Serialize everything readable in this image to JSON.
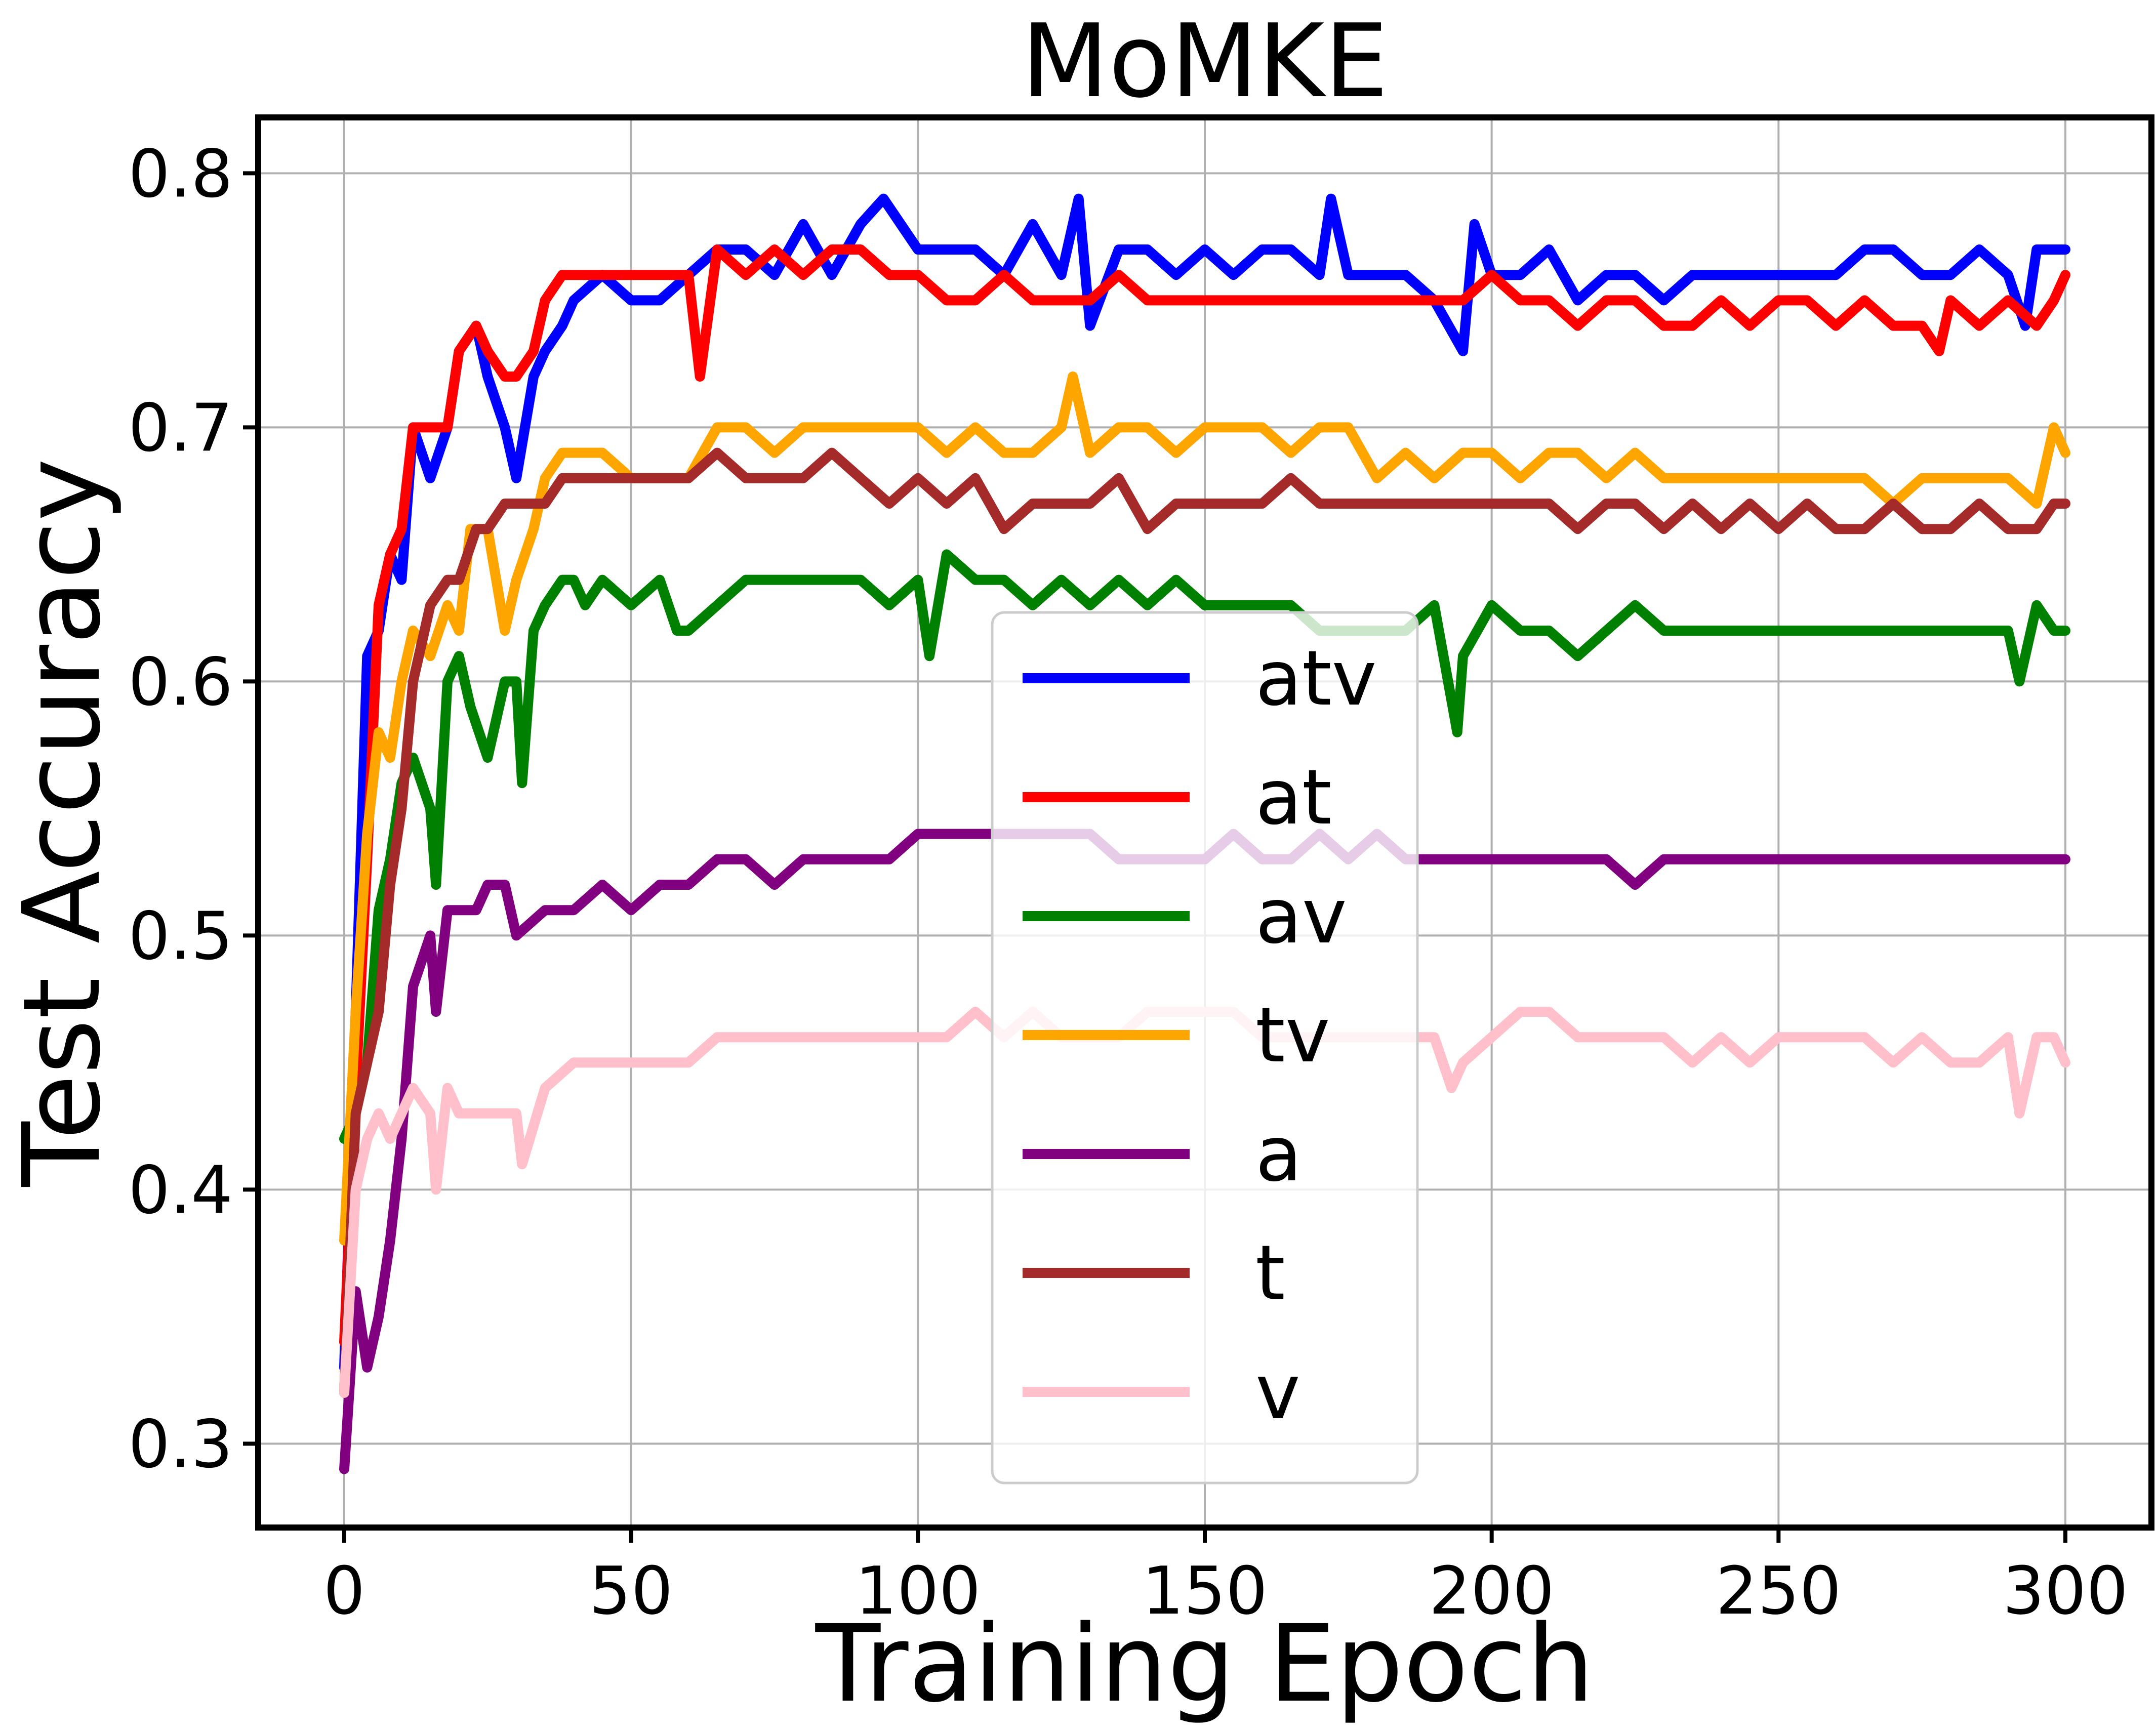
{
  "chart_data": {
    "type": "line",
    "title": "MoMKE",
    "xlabel": "Training Epoch",
    "ylabel": "Test Accuracy",
    "xlim": [
      -15,
      315
    ],
    "ylim": [
      0.267,
      0.822
    ],
    "xticks": [
      0,
      50,
      100,
      150,
      200,
      250,
      300
    ],
    "yticks": [
      0.3,
      0.4,
      0.5,
      0.6,
      0.7,
      0.8
    ],
    "xtick_labels": [
      "0",
      "50",
      "100",
      "150",
      "200",
      "250",
      "300"
    ],
    "ytick_labels": [
      "0.3",
      "0.4",
      "0.5",
      "0.6",
      "0.7",
      "0.8"
    ],
    "grid": true,
    "legend_position": "center",
    "series": [
      {
        "name": "atv",
        "color": "#0000ff",
        "x": [
          0,
          2,
          4,
          6,
          8,
          10,
          12,
          15,
          18,
          20,
          23,
          25,
          28,
          30,
          33,
          35,
          38,
          40,
          45,
          50,
          55,
          60,
          65,
          70,
          75,
          80,
          85,
          90,
          94,
          100,
          105,
          110,
          115,
          120,
          125,
          128,
          130,
          135,
          140,
          145,
          150,
          155,
          160,
          165,
          170,
          172,
          175,
          180,
          185,
          190,
          195,
          197,
          200,
          205,
          210,
          215,
          220,
          225,
          230,
          235,
          240,
          245,
          250,
          255,
          260,
          265,
          270,
          275,
          280,
          285,
          290,
          293,
          295,
          298,
          300
        ],
        "y": [
          0.33,
          0.47,
          0.61,
          0.62,
          0.65,
          0.64,
          0.7,
          0.68,
          0.7,
          0.73,
          0.74,
          0.72,
          0.7,
          0.68,
          0.72,
          0.73,
          0.74,
          0.75,
          0.76,
          0.75,
          0.75,
          0.76,
          0.77,
          0.77,
          0.76,
          0.78,
          0.76,
          0.78,
          0.79,
          0.77,
          0.77,
          0.77,
          0.76,
          0.78,
          0.76,
          0.79,
          0.74,
          0.77,
          0.77,
          0.76,
          0.77,
          0.76,
          0.77,
          0.77,
          0.76,
          0.79,
          0.76,
          0.76,
          0.76,
          0.75,
          0.73,
          0.78,
          0.76,
          0.76,
          0.77,
          0.75,
          0.76,
          0.76,
          0.75,
          0.76,
          0.76,
          0.76,
          0.76,
          0.76,
          0.76,
          0.77,
          0.77,
          0.76,
          0.76,
          0.77,
          0.76,
          0.74,
          0.77,
          0.77,
          0.77
        ]
      },
      {
        "name": "at",
        "color": "#ff0000",
        "x": [
          0,
          2,
          4,
          6,
          8,
          10,
          12,
          15,
          18,
          20,
          23,
          25,
          28,
          30,
          33,
          35,
          38,
          40,
          45,
          50,
          55,
          60,
          62,
          65,
          70,
          75,
          80,
          85,
          90,
          95,
          100,
          105,
          110,
          115,
          120,
          125,
          130,
          135,
          140,
          145,
          150,
          155,
          160,
          165,
          170,
          175,
          180,
          185,
          190,
          195,
          200,
          205,
          210,
          215,
          220,
          225,
          230,
          235,
          240,
          245,
          250,
          255,
          260,
          265,
          270,
          275,
          278,
          280,
          285,
          290,
          295,
          298,
          300
        ],
        "y": [
          0.34,
          0.44,
          0.53,
          0.63,
          0.65,
          0.66,
          0.7,
          0.7,
          0.7,
          0.73,
          0.74,
          0.73,
          0.72,
          0.72,
          0.73,
          0.75,
          0.76,
          0.76,
          0.76,
          0.76,
          0.76,
          0.76,
          0.72,
          0.77,
          0.76,
          0.77,
          0.76,
          0.77,
          0.77,
          0.76,
          0.76,
          0.75,
          0.75,
          0.76,
          0.75,
          0.75,
          0.75,
          0.76,
          0.75,
          0.75,
          0.75,
          0.75,
          0.75,
          0.75,
          0.75,
          0.75,
          0.75,
          0.75,
          0.75,
          0.75,
          0.76,
          0.75,
          0.75,
          0.74,
          0.75,
          0.75,
          0.74,
          0.74,
          0.75,
          0.74,
          0.75,
          0.75,
          0.74,
          0.75,
          0.74,
          0.74,
          0.73,
          0.75,
          0.74,
          0.75,
          0.74,
          0.75,
          0.76
        ]
      },
      {
        "name": "av",
        "color": "#008000",
        "x": [
          0,
          2,
          4,
          6,
          8,
          10,
          12,
          15,
          16,
          18,
          20,
          22,
          25,
          28,
          30,
          31,
          33,
          35,
          38,
          40,
          42,
          45,
          50,
          55,
          58,
          60,
          65,
          70,
          75,
          80,
          85,
          90,
          95,
          100,
          102,
          105,
          110,
          115,
          120,
          125,
          130,
          135,
          140,
          145,
          150,
          155,
          160,
          165,
          170,
          175,
          180,
          185,
          190,
          194,
          195,
          200,
          205,
          210,
          215,
          220,
          225,
          230,
          235,
          240,
          245,
          250,
          255,
          260,
          265,
          270,
          275,
          280,
          285,
          290,
          292,
          295,
          298,
          300
        ],
        "y": [
          0.42,
          0.43,
          0.45,
          0.51,
          0.53,
          0.56,
          0.57,
          0.55,
          0.52,
          0.6,
          0.61,
          0.59,
          0.57,
          0.6,
          0.6,
          0.56,
          0.62,
          0.63,
          0.64,
          0.64,
          0.63,
          0.64,
          0.63,
          0.64,
          0.62,
          0.62,
          0.63,
          0.64,
          0.64,
          0.64,
          0.64,
          0.64,
          0.63,
          0.64,
          0.61,
          0.65,
          0.64,
          0.64,
          0.63,
          0.64,
          0.63,
          0.64,
          0.63,
          0.64,
          0.63,
          0.63,
          0.63,
          0.63,
          0.62,
          0.62,
          0.62,
          0.62,
          0.63,
          0.58,
          0.61,
          0.63,
          0.62,
          0.62,
          0.61,
          0.62,
          0.63,
          0.62,
          0.62,
          0.62,
          0.62,
          0.62,
          0.62,
          0.62,
          0.62,
          0.62,
          0.62,
          0.62,
          0.62,
          0.62,
          0.6,
          0.63,
          0.62,
          0.62
        ]
      },
      {
        "name": "tv",
        "color": "#ffa500",
        "x": [
          0,
          2,
          4,
          6,
          8,
          10,
          12,
          15,
          18,
          20,
          22,
          25,
          28,
          30,
          33,
          35,
          38,
          40,
          45,
          50,
          55,
          60,
          65,
          70,
          75,
          80,
          85,
          90,
          95,
          100,
          105,
          110,
          115,
          120,
          125,
          127,
          130,
          135,
          140,
          145,
          150,
          155,
          160,
          165,
          170,
          175,
          180,
          185,
          190,
          195,
          200,
          205,
          210,
          215,
          220,
          225,
          230,
          235,
          240,
          245,
          250,
          255,
          260,
          265,
          270,
          275,
          280,
          285,
          290,
          295,
          298,
          300
        ],
        "y": [
          0.38,
          0.47,
          0.54,
          0.58,
          0.57,
          0.6,
          0.62,
          0.61,
          0.63,
          0.62,
          0.66,
          0.66,
          0.62,
          0.64,
          0.66,
          0.68,
          0.69,
          0.69,
          0.69,
          0.68,
          0.68,
          0.68,
          0.7,
          0.7,
          0.69,
          0.7,
          0.7,
          0.7,
          0.7,
          0.7,
          0.69,
          0.7,
          0.69,
          0.69,
          0.7,
          0.72,
          0.69,
          0.7,
          0.7,
          0.69,
          0.7,
          0.7,
          0.7,
          0.69,
          0.7,
          0.7,
          0.68,
          0.69,
          0.68,
          0.69,
          0.69,
          0.68,
          0.69,
          0.69,
          0.68,
          0.69,
          0.68,
          0.68,
          0.68,
          0.68,
          0.68,
          0.68,
          0.68,
          0.68,
          0.67,
          0.68,
          0.68,
          0.68,
          0.68,
          0.67,
          0.7,
          0.69
        ]
      },
      {
        "name": "a",
        "color": "#800080",
        "x": [
          0,
          2,
          4,
          6,
          8,
          10,
          12,
          15,
          16,
          18,
          20,
          23,
          25,
          28,
          30,
          35,
          40,
          45,
          50,
          55,
          60,
          65,
          70,
          75,
          80,
          85,
          90,
          95,
          100,
          105,
          110,
          115,
          120,
          125,
          130,
          135,
          140,
          145,
          150,
          155,
          160,
          165,
          170,
          175,
          180,
          185,
          190,
          195,
          200,
          205,
          210,
          215,
          220,
          225,
          230,
          235,
          240,
          245,
          250,
          255,
          260,
          265,
          270,
          275,
          280,
          285,
          290,
          295,
          298,
          300
        ],
        "y": [
          0.29,
          0.36,
          0.33,
          0.35,
          0.38,
          0.42,
          0.48,
          0.5,
          0.47,
          0.51,
          0.51,
          0.51,
          0.52,
          0.52,
          0.5,
          0.51,
          0.51,
          0.52,
          0.51,
          0.52,
          0.52,
          0.53,
          0.53,
          0.52,
          0.53,
          0.53,
          0.53,
          0.53,
          0.54,
          0.54,
          0.54,
          0.54,
          0.54,
          0.54,
          0.54,
          0.53,
          0.53,
          0.53,
          0.53,
          0.54,
          0.53,
          0.53,
          0.54,
          0.53,
          0.54,
          0.53,
          0.53,
          0.53,
          0.53,
          0.53,
          0.53,
          0.53,
          0.53,
          0.52,
          0.53,
          0.53,
          0.53,
          0.53,
          0.53,
          0.53,
          0.53,
          0.53,
          0.53,
          0.53,
          0.53,
          0.53,
          0.53,
          0.53,
          0.53,
          0.53
        ]
      },
      {
        "name": "t",
        "color": "#a52a2a",
        "x": [
          0,
          2,
          4,
          6,
          8,
          10,
          12,
          15,
          18,
          20,
          23,
          25,
          28,
          30,
          33,
          35,
          38,
          40,
          45,
          50,
          55,
          60,
          65,
          70,
          75,
          80,
          85,
          90,
          95,
          100,
          105,
          110,
          115,
          120,
          125,
          130,
          135,
          140,
          145,
          150,
          155,
          160,
          165,
          170,
          175,
          180,
          185,
          190,
          195,
          200,
          205,
          210,
          215,
          220,
          225,
          230,
          235,
          240,
          245,
          250,
          255,
          260,
          265,
          270,
          275,
          280,
          285,
          290,
          295,
          298,
          300
        ],
        "y": [
          0.32,
          0.43,
          0.45,
          0.47,
          0.52,
          0.55,
          0.6,
          0.63,
          0.64,
          0.64,
          0.66,
          0.66,
          0.67,
          0.67,
          0.67,
          0.67,
          0.68,
          0.68,
          0.68,
          0.68,
          0.68,
          0.68,
          0.69,
          0.68,
          0.68,
          0.68,
          0.69,
          0.68,
          0.67,
          0.68,
          0.67,
          0.68,
          0.66,
          0.67,
          0.67,
          0.67,
          0.68,
          0.66,
          0.67,
          0.67,
          0.67,
          0.67,
          0.68,
          0.67,
          0.67,
          0.67,
          0.67,
          0.67,
          0.67,
          0.67,
          0.67,
          0.67,
          0.66,
          0.67,
          0.67,
          0.66,
          0.67,
          0.66,
          0.67,
          0.66,
          0.67,
          0.66,
          0.66,
          0.67,
          0.66,
          0.66,
          0.67,
          0.66,
          0.66,
          0.67,
          0.67
        ]
      },
      {
        "name": "v",
        "color": "#ffc0cb",
        "x": [
          0,
          2,
          4,
          6,
          8,
          10,
          12,
          15,
          16,
          18,
          20,
          25,
          30,
          31,
          35,
          40,
          45,
          50,
          55,
          60,
          65,
          70,
          75,
          80,
          85,
          90,
          95,
          100,
          105,
          110,
          115,
          120,
          125,
          130,
          135,
          140,
          145,
          150,
          155,
          160,
          165,
          170,
          175,
          180,
          185,
          190,
          193,
          195,
          200,
          205,
          210,
          215,
          220,
          225,
          230,
          235,
          240,
          245,
          250,
          255,
          260,
          265,
          270,
          275,
          280,
          285,
          290,
          292,
          295,
          298,
          300
        ],
        "y": [
          0.32,
          0.4,
          0.42,
          0.43,
          0.42,
          0.43,
          0.44,
          0.43,
          0.4,
          0.44,
          0.43,
          0.43,
          0.43,
          0.41,
          0.44,
          0.45,
          0.45,
          0.45,
          0.45,
          0.45,
          0.46,
          0.46,
          0.46,
          0.46,
          0.46,
          0.46,
          0.46,
          0.46,
          0.46,
          0.47,
          0.46,
          0.47,
          0.46,
          0.46,
          0.46,
          0.47,
          0.47,
          0.47,
          0.47,
          0.46,
          0.46,
          0.46,
          0.46,
          0.46,
          0.46,
          0.46,
          0.44,
          0.45,
          0.46,
          0.47,
          0.47,
          0.46,
          0.46,
          0.46,
          0.46,
          0.45,
          0.46,
          0.45,
          0.46,
          0.46,
          0.46,
          0.46,
          0.45,
          0.46,
          0.45,
          0.45,
          0.46,
          0.43,
          0.46,
          0.46,
          0.45
        ]
      }
    ]
  }
}
